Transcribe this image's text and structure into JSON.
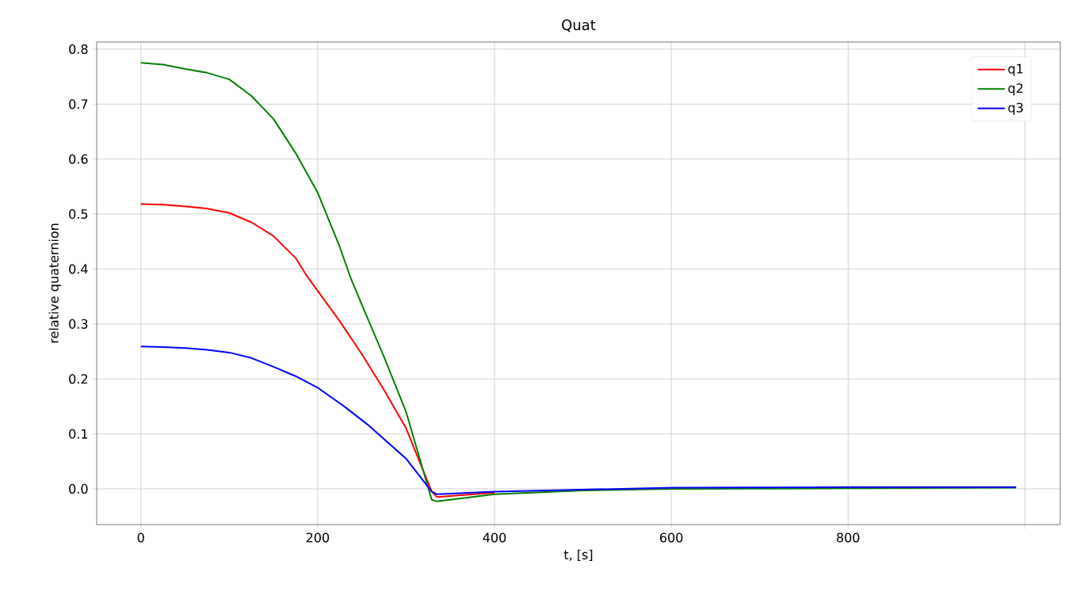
{
  "chart_data": {
    "type": "line",
    "title": "Quat",
    "xlabel": "t, [s]",
    "ylabel": "relative quaternion",
    "xlim": [
      -50,
      1040
    ],
    "ylim": [
      -0.065,
      0.813
    ],
    "xticks": [
      0,
      200,
      400,
      600,
      800,
      {
        "value": 1000,
        "label": null
      }
    ],
    "yticks": [
      {
        "value": 0,
        "label": "0.0"
      },
      0.1,
      0.2,
      0.3,
      0.4,
      0.5,
      0.6,
      0.7,
      0.8
    ],
    "grid": true,
    "legend": "top right",
    "marker": "none",
    "line_style": "solid",
    "series": [
      {
        "name": "q1",
        "color": "#ff0000",
        "x": [
          0,
          25,
          50,
          75,
          100,
          125,
          150,
          175,
          187,
          200,
          225,
          250,
          275,
          300,
          329,
          335,
          400
        ],
        "values": [
          0.518,
          0.517,
          0.514,
          0.51,
          0.502,
          0.485,
          0.46,
          0.42,
          0.389,
          0.36,
          0.305,
          0.245,
          0.18,
          0.11,
          -0.005,
          -0.015,
          -0.007
        ]
      },
      {
        "name": "q2",
        "color": "#008000",
        "x": [
          0,
          25,
          50,
          75,
          100,
          125,
          150,
          175,
          200,
          225,
          237,
          250,
          275,
          300,
          329,
          335,
          400,
          500,
          600,
          800,
          990
        ],
        "values": [
          0.775,
          0.772,
          0.764,
          0.757,
          0.745,
          0.715,
          0.673,
          0.611,
          0.539,
          0.44,
          0.385,
          0.335,
          0.24,
          0.14,
          -0.02,
          -0.023,
          -0.01,
          -0.003,
          0,
          0.001,
          0.002
        ]
      },
      {
        "name": "q3",
        "color": "#0000ff",
        "x": [
          0,
          25,
          50,
          75,
          100,
          125,
          150,
          175,
          201,
          230,
          258,
          300,
          329,
          335,
          400,
          600,
          800,
          990
        ],
        "values": [
          0.259,
          0.258,
          0.256,
          0.253,
          0.248,
          0.238,
          0.222,
          0.205,
          0.183,
          0.15,
          0.115,
          0.055,
          -0.005,
          -0.01,
          -0.005,
          0.002,
          0.003,
          0.003
        ]
      }
    ]
  }
}
